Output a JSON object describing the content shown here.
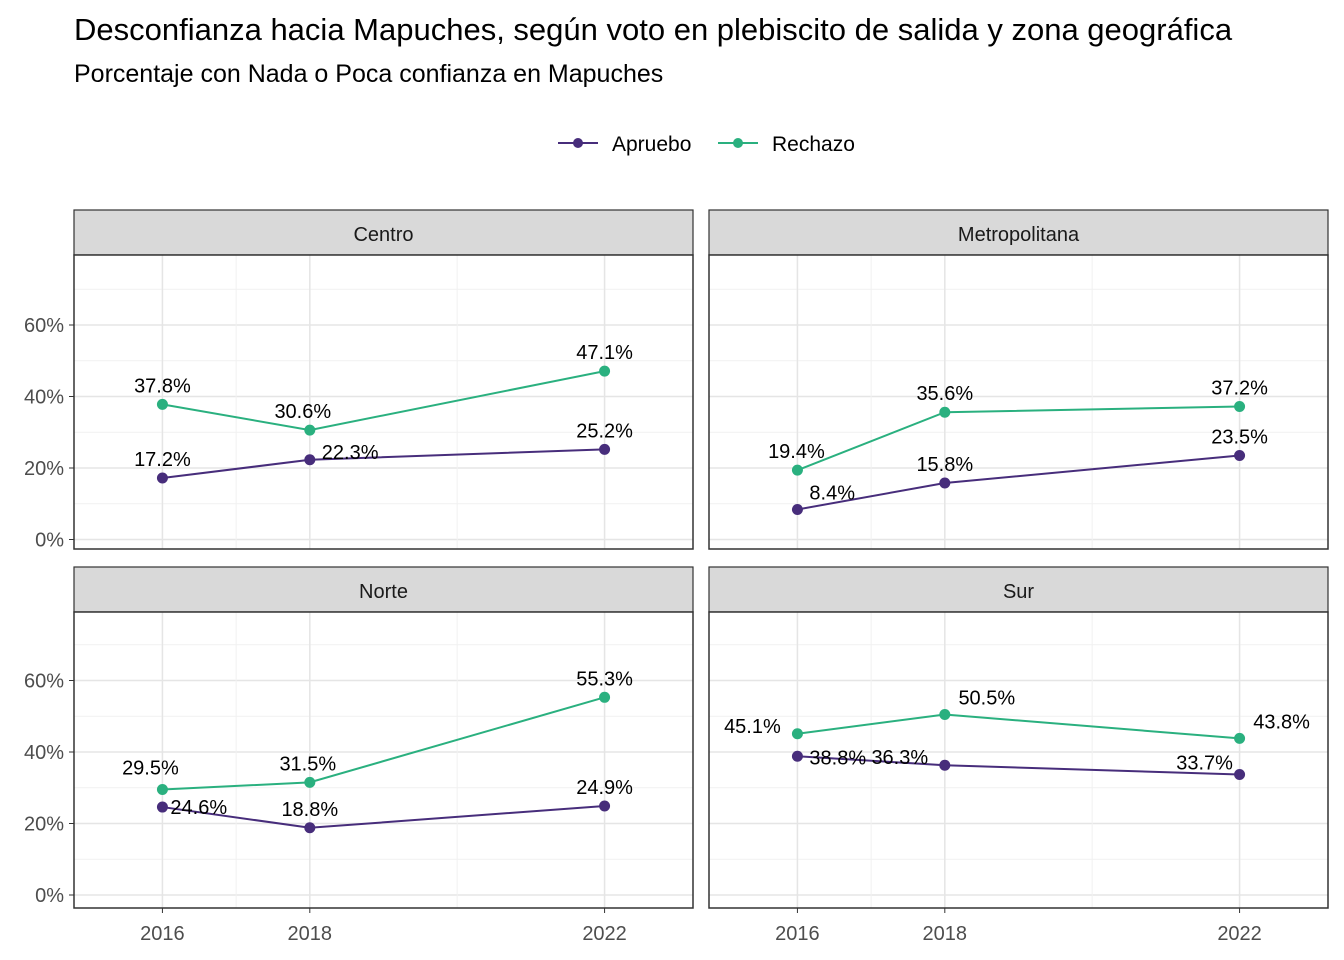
{
  "title": "Desconfianza hacia Mapuches, según voto en plebiscito de salida y zona geográfica",
  "subtitle": "Porcentaje con Nada o Poca confianza en Mapuches",
  "chart_data": {
    "type": "line",
    "title": "Desconfianza hacia Mapuches, según voto en plebiscito de salida y zona geográfica",
    "subtitle": "Porcentaje con Nada o Poca confianza en Mapuches",
    "x": [
      "2016",
      "2018",
      "2022"
    ],
    "x_ticks": [
      "2016",
      "2018",
      "2022"
    ],
    "y_ticks": [
      "0%",
      "20%",
      "40%",
      "60%"
    ],
    "ylim": [
      0,
      80
    ],
    "grid": true,
    "legend_position": "top",
    "series_names": [
      "Apruebo",
      "Rechazo"
    ],
    "colors": {
      "Apruebo": "#472d7b",
      "Rechazo": "#2ab07f"
    },
    "facets": [
      {
        "name": "Centro",
        "series": [
          {
            "name": "Apruebo",
            "values": [
              17.2,
              22.3,
              25.2
            ],
            "labels": [
              "17.2%",
              "22.3%",
              "25.2%"
            ]
          },
          {
            "name": "Rechazo",
            "values": [
              37.8,
              30.6,
              47.1
            ],
            "labels": [
              "37.8%",
              "30.6%",
              "47.1%"
            ]
          }
        ]
      },
      {
        "name": "Metropolitana",
        "series": [
          {
            "name": "Apruebo",
            "values": [
              8.4,
              15.8,
              23.5
            ],
            "labels": [
              "8.4%",
              "15.8%",
              "23.5%"
            ]
          },
          {
            "name": "Rechazo",
            "values": [
              19.4,
              35.6,
              37.2
            ],
            "labels": [
              "19.4%",
              "35.6%",
              "37.2%"
            ]
          }
        ]
      },
      {
        "name": "Norte",
        "series": [
          {
            "name": "Apruebo",
            "values": [
              24.6,
              18.8,
              24.9
            ],
            "labels": [
              "24.6%",
              "18.8%",
              "24.9%"
            ]
          },
          {
            "name": "Rechazo",
            "values": [
              29.5,
              31.5,
              55.3
            ],
            "labels": [
              "29.5%",
              "31.5%",
              "55.3%"
            ]
          }
        ]
      },
      {
        "name": "Sur",
        "series": [
          {
            "name": "Apruebo",
            "values": [
              38.8,
              36.3,
              33.7
            ],
            "labels": [
              "38.8%",
              "36.3%",
              "33.7%"
            ]
          },
          {
            "name": "Rechazo",
            "values": [
              45.1,
              50.5,
              43.8
            ],
            "labels": [
              "45.1%",
              "50.5%",
              "43.8%"
            ]
          }
        ]
      }
    ]
  }
}
